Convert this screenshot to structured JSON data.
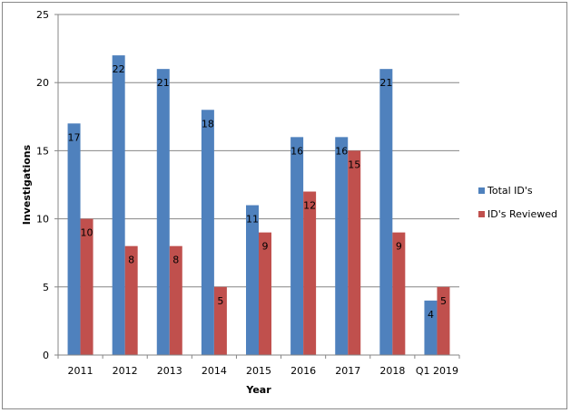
{
  "chart_data": {
    "type": "bar",
    "title": "",
    "xlabel": "Year",
    "ylabel": "Investigations",
    "ylim": [
      0,
      25
    ],
    "yticks": [
      0,
      5,
      10,
      15,
      20,
      25
    ],
    "grid": true,
    "legend_position": "right",
    "categories": [
      "2011",
      "2012",
      "2013",
      "2014",
      "2015",
      "2016",
      "2017",
      "2018",
      "Q1 2019"
    ],
    "series": [
      {
        "name": "Total ID's",
        "color": "#4F81BD",
        "values": [
          17,
          22,
          21,
          18,
          11,
          16,
          16,
          21,
          4
        ]
      },
      {
        "name": "ID's Reviewed",
        "color": "#C0504D",
        "values": [
          10,
          8,
          8,
          5,
          9,
          12,
          15,
          9,
          5
        ]
      }
    ]
  }
}
